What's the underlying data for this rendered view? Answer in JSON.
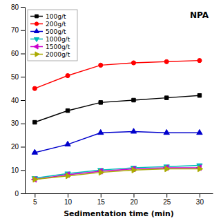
{
  "chart_data": {
    "type": "line",
    "xlabel": "Sedimentation time (min)",
    "x": [
      5,
      10,
      15,
      20,
      25,
      30
    ],
    "series": [
      {
        "name": "100g/t",
        "color": "#000000",
        "marker": "square",
        "values": [
          30.5,
          35.5,
          39.0,
          40.0,
          41.0,
          42.0
        ]
      },
      {
        "name": "200g/t",
        "color": "#ff0000",
        "marker": "circle",
        "values": [
          45.0,
          50.5,
          55.0,
          56.0,
          56.5,
          57.0
        ]
      },
      {
        "name": "500g/t",
        "color": "#0000cc",
        "marker": "triangle-up",
        "values": [
          17.5,
          21.0,
          26.0,
          26.5,
          26.0,
          26.0
        ]
      },
      {
        "name": "1000g/t",
        "color": "#00bbbb",
        "marker": "triangle-down",
        "values": [
          6.5,
          8.5,
          10.0,
          11.0,
          11.5,
          12.0
        ]
      },
      {
        "name": "1500g/t",
        "color": "#cc00cc",
        "marker": "triangle-left",
        "values": [
          6.0,
          8.0,
          9.5,
          10.5,
          11.0,
          11.0
        ]
      },
      {
        "name": "2000g/t",
        "color": "#aaaa00",
        "marker": "triangle-right",
        "values": [
          6.0,
          7.5,
          9.0,
          10.0,
          10.5,
          10.5
        ]
      }
    ],
    "xlim": [
      3.5,
      32
    ],
    "xticks": [
      5,
      10,
      15,
      20,
      25,
      30
    ],
    "ylim": [
      0,
      80
    ],
    "yticks": [
      0,
      10,
      20,
      30,
      40,
      50,
      60,
      70,
      80
    ],
    "legend": "upper left",
    "annotations": [
      "NPA"
    ]
  }
}
